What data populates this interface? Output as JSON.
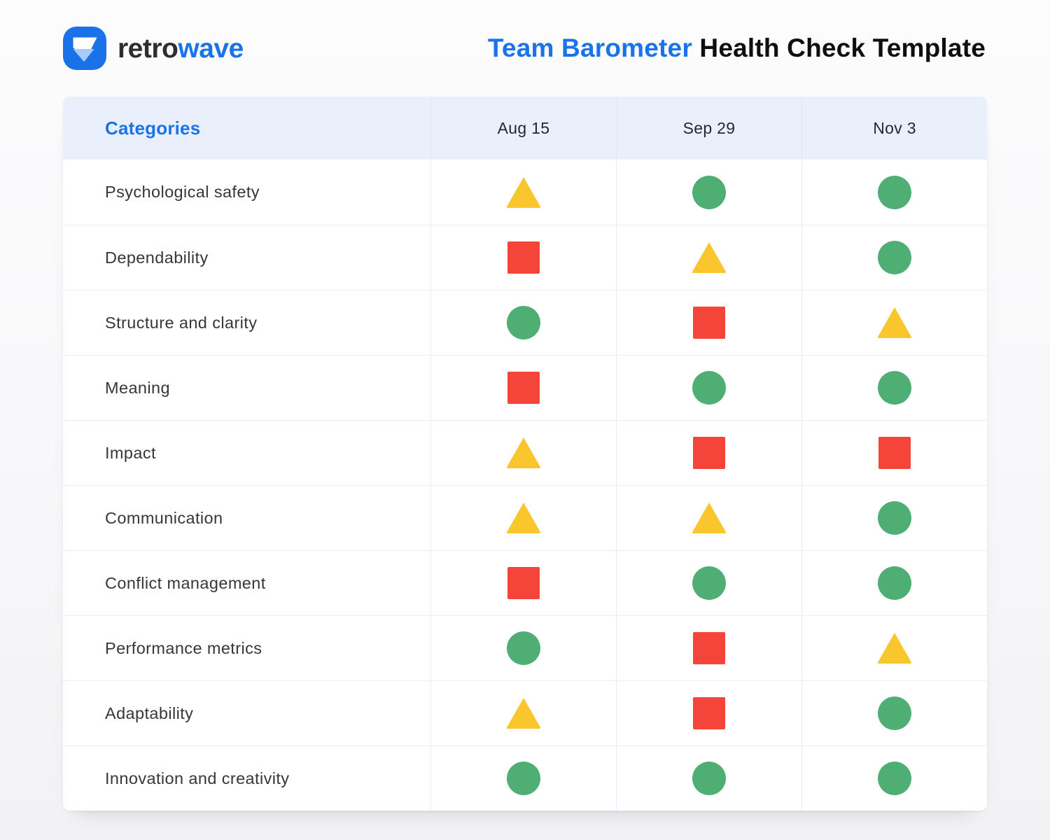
{
  "brand": {
    "name_primary": "retro",
    "name_secondary": "wave"
  },
  "title": {
    "highlight": "Team Barometer",
    "rest": "Health Check Template"
  },
  "table": {
    "header": {
      "categories_label": "Categories",
      "dates": [
        "Aug 15",
        "Sep 29",
        "Nov 3"
      ]
    },
    "rows": [
      {
        "category": "Psychological safety",
        "marks": [
          "triangle",
          "circle",
          "circle"
        ]
      },
      {
        "category": "Dependability",
        "marks": [
          "square",
          "triangle",
          "circle"
        ]
      },
      {
        "category": "Structure and clarity",
        "marks": [
          "circle",
          "square",
          "triangle"
        ]
      },
      {
        "category": "Meaning",
        "marks": [
          "square",
          "circle",
          "circle"
        ]
      },
      {
        "category": "Impact",
        "marks": [
          "triangle",
          "square",
          "square"
        ]
      },
      {
        "category": "Communication",
        "marks": [
          "triangle",
          "triangle",
          "circle"
        ]
      },
      {
        "category": "Conflict management",
        "marks": [
          "square",
          "circle",
          "circle"
        ]
      },
      {
        "category": "Performance metrics",
        "marks": [
          "circle",
          "square",
          "triangle"
        ]
      },
      {
        "category": "Adaptability",
        "marks": [
          "triangle",
          "square",
          "circle"
        ]
      },
      {
        "category": "Innovation and creativity",
        "marks": [
          "circle",
          "circle",
          "circle"
        ]
      }
    ]
  },
  "icons": {
    "logo": "retrowave-logo-icon",
    "triangle": "status-triangle-icon",
    "square": "status-square-icon",
    "circle": "status-circle-icon"
  },
  "colors": {
    "accent_blue": "#1A73E8",
    "brand_dark": "#2D2E30",
    "title_dark": "#0E0F10",
    "header_bg": "#EAF0FB",
    "logo_blue": "#1B72E8",
    "logo_white": "#FFFFFF",
    "logo_light_blue": "#A9CBF8",
    "triangle_yellow": "#FAC62D",
    "square_red": "#F5453B",
    "circle_green": "#4FAE74"
  }
}
